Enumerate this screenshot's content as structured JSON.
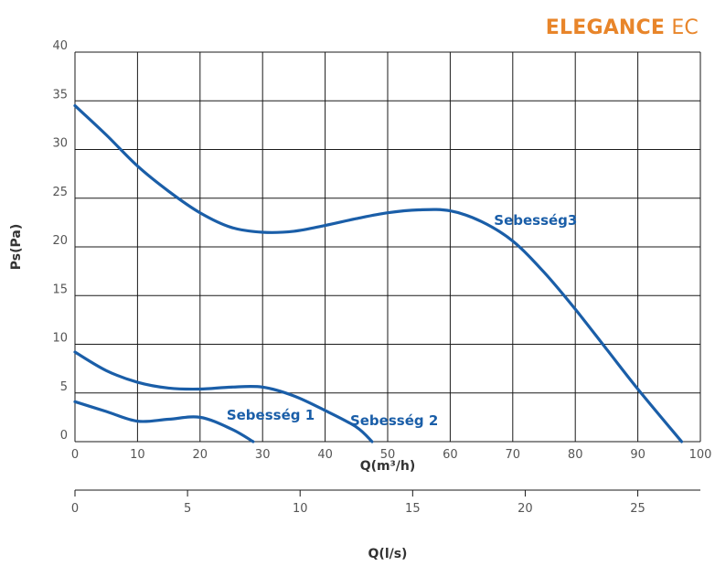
{
  "brand": {
    "bold": "ELEGANCE",
    "light": "EC"
  },
  "chart_data": {
    "type": "line",
    "xlabel": "Q(m³/h)",
    "ylabel": "Ps(Pa)",
    "xlim": [
      0,
      100
    ],
    "ylim": [
      0,
      40
    ],
    "xticks": [
      0,
      10,
      20,
      30,
      40,
      50,
      60,
      70,
      80,
      90,
      100
    ],
    "yticks": [
      0,
      5,
      10,
      15,
      20,
      25,
      30,
      35,
      40
    ],
    "grid": true,
    "secondary_axis": {
      "label": "Q(l/s)",
      "ticks": [
        0,
        5,
        10,
        15,
        20,
        25
      ],
      "max": 27.78
    },
    "series": [
      {
        "name": "Sebesség 1",
        "x": [
          0,
          5,
          10,
          15,
          20,
          25,
          28.5
        ],
        "y": [
          4.1,
          3.1,
          2.1,
          2.3,
          2.5,
          1.3,
          0
        ]
      },
      {
        "name": "Sebesség 2",
        "x": [
          0,
          5,
          10,
          15,
          20,
          25,
          30,
          35,
          40,
          45,
          47.5
        ],
        "y": [
          9.2,
          7.3,
          6.1,
          5.5,
          5.4,
          5.6,
          5.6,
          4.7,
          3.2,
          1.5,
          0
        ]
      },
      {
        "name": "Sebesség3",
        "x": [
          0,
          5,
          10,
          15,
          20,
          25,
          30,
          35,
          40,
          45,
          50,
          55,
          60,
          65,
          70,
          75,
          80,
          85,
          90,
          97
        ],
        "y": [
          34.5,
          31.5,
          28.3,
          25.7,
          23.5,
          22.0,
          21.5,
          21.6,
          22.2,
          22.9,
          23.5,
          23.8,
          23.7,
          22.6,
          20.6,
          17.4,
          13.6,
          9.5,
          5.4,
          0
        ]
      }
    ],
    "color": "#1a5ea8"
  }
}
